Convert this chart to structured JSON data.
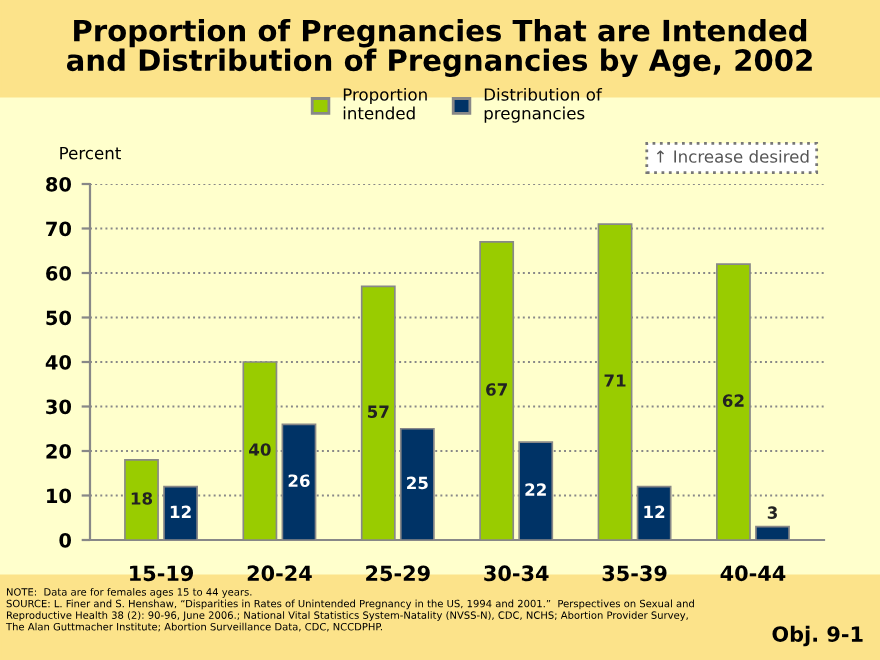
{
  "chart_data": {
    "type": "bar",
    "title": "Proportion of Pregnancies That are Intended\nand Distribution of Pregnancies by Age, 2002",
    "ylabel": "Percent",
    "categories": [
      "15-19",
      "20-24",
      "25-29",
      "30-34",
      "35-39",
      "40-44"
    ],
    "series": [
      {
        "name": "Proportion\nintended",
        "color": "#99cc00",
        "values": [
          18,
          40,
          57,
          67,
          71,
          62
        ]
      },
      {
        "name": "Distribution of\npregnancies",
        "color": "#003366",
        "values": [
          12,
          26,
          25,
          22,
          12,
          3
        ]
      }
    ],
    "ylim": [
      0,
      80
    ],
    "yticks": [
      0,
      10,
      20,
      30,
      40,
      50,
      60,
      70,
      80
    ],
    "grid": "y",
    "legend": "top",
    "data_labels": true,
    "annotations": [
      "↑ Increase desired",
      "NOTE:  Data are for females ages 15 to 44 years.\nSOURCE: L. Finer and S. Henshaw, “Disparities in Rates of Unintended Pregnancy in the US, 1994 and 2001.”  Perspectives on Sexual and\nReproductive Health 38 (2): 90-96, June 2006.; National Vital Statistics System-Natality (NVSS-N), CDC, NCHS; Abortion Provider Survey,\nThe Alan Guttmacher Institute; Abortion Surveillance Data, CDC, NCCDPHP.",
      "Obj. 9-1"
    ]
  }
}
